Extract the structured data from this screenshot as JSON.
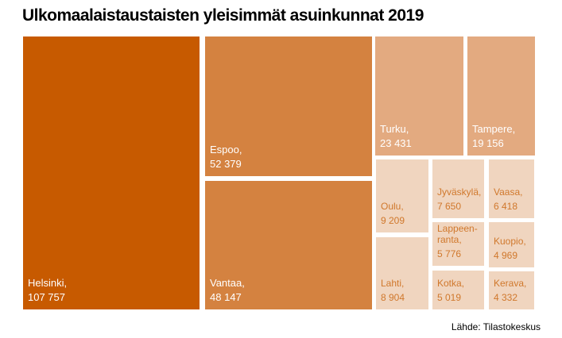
{
  "chart_data": {
    "type": "treemap",
    "title": "Ulkomaalaistaustaisten yleisimmät asuinkunnat 2019",
    "source": "Lähde: Tilastokeskus",
    "colors": {
      "largest": "#c75a00",
      "large": "#d48240",
      "medium": "#e3aa80",
      "small": "#f0d5bf",
      "small_text": "#d0782c",
      "text": "#ffffff"
    },
    "items": [
      {
        "name": "Helsinki",
        "label": "Helsinki,",
        "value": 107757,
        "value_label": "107 757"
      },
      {
        "name": "Espoo",
        "label": "Espoo,",
        "value": 52379,
        "value_label": "52 379"
      },
      {
        "name": "Vantaa",
        "label": "Vantaa,",
        "value": 48147,
        "value_label": "48 147"
      },
      {
        "name": "Turku",
        "label": "Turku,",
        "value": 23431,
        "value_label": "23 431"
      },
      {
        "name": "Tampere",
        "label": "Tampere,",
        "value": 19156,
        "value_label": "19 156"
      },
      {
        "name": "Oulu",
        "label": "Oulu,",
        "value": 9209,
        "value_label": "9 209"
      },
      {
        "name": "Lahti",
        "label": "Lahti,",
        "value": 8904,
        "value_label": "8 904"
      },
      {
        "name": "Jyväskylä",
        "label": "Jyväskylä,",
        "value": 7650,
        "value_label": "7 650"
      },
      {
        "name": "Vaasa",
        "label": "Vaasa,",
        "value": 6418,
        "value_label": "6 418"
      },
      {
        "name": "Lappeenranta",
        "label": "Lappeen- ranta,",
        "value": 5776,
        "value_label": "5 776"
      },
      {
        "name": "Kuopio",
        "label": "Kuopio,",
        "value": 4969,
        "value_label": "4 969"
      },
      {
        "name": "Kotka",
        "label": "Kotka,",
        "value": 5019,
        "value_label": "5 019"
      },
      {
        "name": "Kerava",
        "label": "Kerava,",
        "value": 4332,
        "value_label": "4 332"
      }
    ]
  }
}
